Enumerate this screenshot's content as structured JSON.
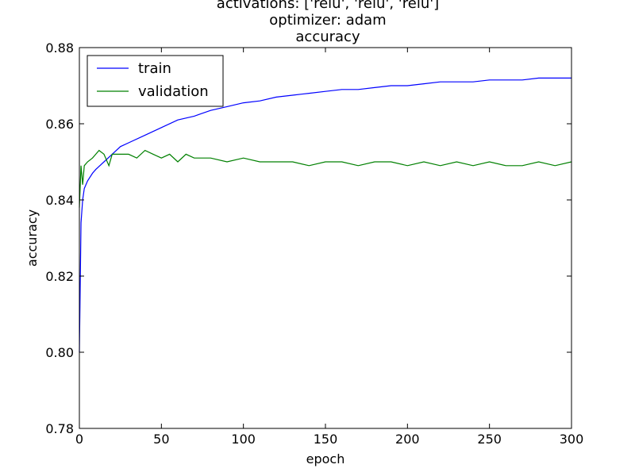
{
  "chart_data": {
    "type": "line",
    "title_lines": [
      "activations: ['relu', 'relu', 'relu']",
      "optimizer: adam",
      "accuracy"
    ],
    "xlabel": "epoch",
    "ylabel": "accuracy",
    "xlim": [
      0,
      300
    ],
    "ylim": [
      0.78,
      0.88
    ],
    "xticks": [
      0,
      50,
      100,
      150,
      200,
      250,
      300
    ],
    "yticks": [
      0.78,
      0.8,
      0.82,
      0.84,
      0.86,
      0.88
    ],
    "xtick_labels": [
      "0",
      "50",
      "100",
      "150",
      "200",
      "250",
      "300"
    ],
    "ytick_labels": [
      "0.78",
      "0.80",
      "0.82",
      "0.84",
      "0.86",
      "0.88"
    ],
    "grid": false,
    "legend": {
      "position": "top-left",
      "entries": [
        "train",
        "validation"
      ]
    },
    "series": [
      {
        "name": "train",
        "color": "#0000ff",
        "x": [
          0,
          1,
          2,
          3,
          5,
          8,
          10,
          15,
          20,
          25,
          30,
          40,
          50,
          60,
          70,
          80,
          90,
          100,
          110,
          120,
          130,
          140,
          150,
          160,
          170,
          180,
          190,
          200,
          210,
          220,
          230,
          240,
          250,
          260,
          270,
          280,
          290,
          300
        ],
        "y": [
          0.8,
          0.834,
          0.84,
          0.843,
          0.845,
          0.847,
          0.848,
          0.85,
          0.852,
          0.854,
          0.855,
          0.857,
          0.859,
          0.861,
          0.862,
          0.8635,
          0.8645,
          0.8655,
          0.866,
          0.867,
          0.8675,
          0.868,
          0.8685,
          0.869,
          0.869,
          0.8695,
          0.87,
          0.87,
          0.8705,
          0.871,
          0.871,
          0.871,
          0.8715,
          0.8715,
          0.8715,
          0.872,
          0.872,
          0.872
        ]
      },
      {
        "name": "validation",
        "color": "#008000",
        "x": [
          0,
          1,
          2,
          3,
          5,
          8,
          10,
          12,
          15,
          18,
          20,
          25,
          30,
          35,
          40,
          45,
          50,
          55,
          60,
          65,
          70,
          80,
          90,
          100,
          110,
          120,
          130,
          140,
          150,
          160,
          170,
          180,
          190,
          200,
          210,
          220,
          230,
          240,
          250,
          260,
          270,
          280,
          290,
          300
        ],
        "y": [
          0.838,
          0.849,
          0.844,
          0.849,
          0.85,
          0.851,
          0.852,
          0.853,
          0.852,
          0.849,
          0.852,
          0.852,
          0.852,
          0.851,
          0.853,
          0.852,
          0.851,
          0.852,
          0.85,
          0.852,
          0.851,
          0.851,
          0.85,
          0.851,
          0.85,
          0.85,
          0.85,
          0.849,
          0.85,
          0.85,
          0.849,
          0.85,
          0.85,
          0.849,
          0.85,
          0.849,
          0.85,
          0.849,
          0.85,
          0.849,
          0.849,
          0.85,
          0.849,
          0.85
        ]
      }
    ]
  }
}
